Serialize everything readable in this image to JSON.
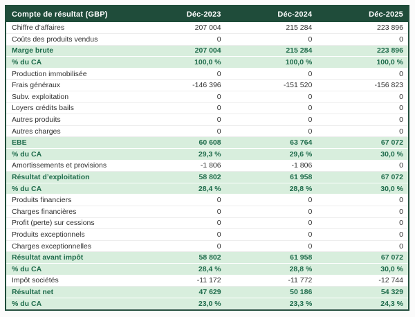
{
  "colors": {
    "page_background": "#fbfbfb",
    "header_background": "#1f4c3a",
    "header_text": "#ffffff",
    "outer_border": "#1f4c3a",
    "highlight_row_background": "#d8eedd",
    "highlight_row_text": "#1e6b4b",
    "normal_text": "#2f2f2f"
  },
  "chart_data": {
    "type": "table",
    "title": "Compte de résultat (GBP)",
    "columns": [
      "Déc-2023",
      "Déc-2024",
      "Déc-2025"
    ],
    "rows": [
      {
        "label": "Chiffre d’affaires",
        "values": [
          "207 004",
          "215 284",
          "223 896"
        ],
        "highlight": false
      },
      {
        "label": "Coûts des produits vendus",
        "values": [
          "0",
          "0",
          "0"
        ],
        "highlight": false
      },
      {
        "label": "Marge brute",
        "values": [
          "207 004",
          "215 284",
          "223 896"
        ],
        "highlight": true
      },
      {
        "label": "% du CA",
        "values": [
          "100,0 %",
          "100,0 %",
          "100,0 %"
        ],
        "highlight": true
      },
      {
        "label": "Production immobilisée",
        "values": [
          "0",
          "0",
          "0"
        ],
        "highlight": false
      },
      {
        "label": "Frais généraux",
        "values": [
          "-146 396",
          "-151 520",
          "-156 823"
        ],
        "highlight": false
      },
      {
        "label": "Subv. exploitation",
        "values": [
          "0",
          "0",
          "0"
        ],
        "highlight": false
      },
      {
        "label": "Loyers crédits bails",
        "values": [
          "0",
          "0",
          "0"
        ],
        "highlight": false
      },
      {
        "label": "Autres produits",
        "values": [
          "0",
          "0",
          "0"
        ],
        "highlight": false
      },
      {
        "label": "Autres charges",
        "values": [
          "0",
          "0",
          "0"
        ],
        "highlight": false
      },
      {
        "label": "EBE",
        "values": [
          "60 608",
          "63 764",
          "67 072"
        ],
        "highlight": true
      },
      {
        "label": "% du CA",
        "values": [
          "29,3 %",
          "29,6 %",
          "30,0 %"
        ],
        "highlight": true
      },
      {
        "label": "Amortissements et provisions",
        "values": [
          "-1 806",
          "-1 806",
          "0"
        ],
        "highlight": false
      },
      {
        "label": "Résultat d’exploitation",
        "values": [
          "58 802",
          "61 958",
          "67 072"
        ],
        "highlight": true
      },
      {
        "label": "% du CA",
        "values": [
          "28,4 %",
          "28,8 %",
          "30,0 %"
        ],
        "highlight": true
      },
      {
        "label": "Produits financiers",
        "values": [
          "0",
          "0",
          "0"
        ],
        "highlight": false
      },
      {
        "label": "Charges financières",
        "values": [
          "0",
          "0",
          "0"
        ],
        "highlight": false
      },
      {
        "label": "Profit (perte) sur cessions",
        "values": [
          "0",
          "0",
          "0"
        ],
        "highlight": false
      },
      {
        "label": "Produits exceptionnels",
        "values": [
          "0",
          "0",
          "0"
        ],
        "highlight": false
      },
      {
        "label": "Charges exceptionnelles",
        "values": [
          "0",
          "0",
          "0"
        ],
        "highlight": false
      },
      {
        "label": "Résultat avant impôt",
        "values": [
          "58 802",
          "61 958",
          "67 072"
        ],
        "highlight": true
      },
      {
        "label": "% du CA",
        "values": [
          "28,4 %",
          "28,8 %",
          "30,0 %"
        ],
        "highlight": true
      },
      {
        "label": "Impôt sociétés",
        "values": [
          "-11 172",
          "-11 772",
          "-12 744"
        ],
        "highlight": false
      },
      {
        "label": "Résultat net",
        "values": [
          "47 629",
          "50 186",
          "54 329"
        ],
        "highlight": true
      },
      {
        "label": "% du CA",
        "values": [
          "23,0 %",
          "23,3 %",
          "24,3 %"
        ],
        "highlight": true
      }
    ]
  }
}
